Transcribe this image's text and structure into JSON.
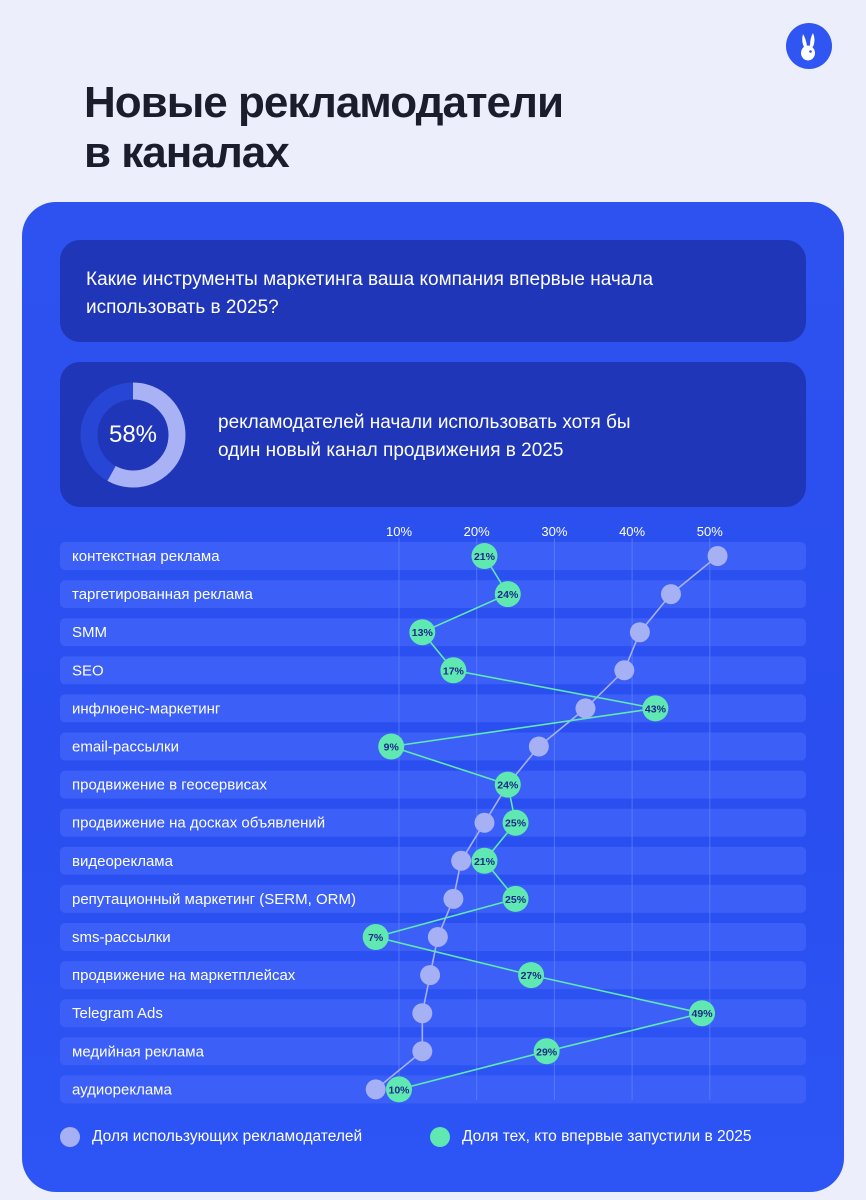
{
  "page": {
    "title_line1": "Новые рекламодатели",
    "title_line2": "в каналах",
    "logo_icon": "bunny-logo-icon"
  },
  "question": {
    "text": "Какие инструменты маркетинга ваша компания впервые начала использовать в 2025?"
  },
  "stat": {
    "value": 58,
    "percent_label": "58%",
    "text": "рекламодателей начали использовать хотя бы один новый канал продвижения в 2025"
  },
  "colors": {
    "page_bg": "#eceffb",
    "panel": "#2d52ef",
    "box_dark": "#1f36b8",
    "row_bg": "#3b5ff7",
    "using_series": "#a6b0f5",
    "new_series": "#5fe8b2"
  },
  "chart_data": {
    "type": "line",
    "orientation": "horizontal",
    "x_ticks": [
      "10%",
      "20%",
      "30%",
      "40%",
      "50%"
    ],
    "xlim": [
      0,
      52
    ],
    "grid": true,
    "legend_position": "bottom",
    "categories": [
      "контекстная реклама",
      "таргетированная реклама",
      "SMM",
      "SEO",
      "инфлюенс-маркетинг",
      "email-рассылки",
      "продвижение в геосервисах",
      "продвижение на досках объявлений",
      "видеореклама",
      "репутационный маркетинг (SERM, ORM)",
      "sms-рассылки",
      "продвижение на маркетплейсах",
      "Telegram Ads",
      "медийная реклама",
      "аудиореклама"
    ],
    "series": [
      {
        "name": "Доля использующих рекламодателей",
        "labeled": false,
        "values": [
          51,
          45,
          41,
          39,
          34,
          28,
          24,
          21,
          18,
          17,
          15,
          14,
          13,
          13,
          7
        ]
      },
      {
        "name": "Доля тех, кто впервые запустили в 2025",
        "labeled": true,
        "values": [
          21,
          24,
          13,
          17,
          43,
          9,
          24,
          25,
          21,
          25,
          7,
          27,
          49,
          29,
          10
        ]
      }
    ]
  }
}
